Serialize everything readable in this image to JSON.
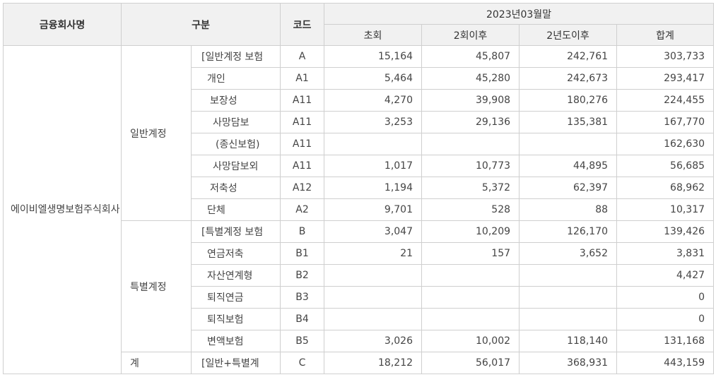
{
  "header": {
    "company_col": "금융회사명",
    "category_col": "구분",
    "code_col": "코드",
    "period": "2023년03월말",
    "sub_cols": [
      "초회",
      "2회이후",
      "2년도이후",
      "합계"
    ]
  },
  "company": "에이비엘생명보험주식회사",
  "groups": {
    "general": "일반계정",
    "special": "특별계정",
    "total": "계"
  },
  "rows": [
    {
      "item": "[일반계정 보험",
      "indent": 14,
      "code": "A",
      "v1": "15,164",
      "v2": "45,807",
      "v3": "242,761",
      "v4": "303,733"
    },
    {
      "item": "개인",
      "indent": 22,
      "code": "A1",
      "v1": "5,464",
      "v2": "45,280",
      "v3": "242,673",
      "v4": "293,417"
    },
    {
      "item": "보장성",
      "indent": 26,
      "code": "A11",
      "v1": "4,270",
      "v2": "39,908",
      "v3": "180,276",
      "v4": "224,455"
    },
    {
      "item": "사망담보",
      "indent": 30,
      "code": "A11",
      "v1": "3,253",
      "v2": "29,136",
      "v3": "135,381",
      "v4": "167,770"
    },
    {
      "item": "(종신보험)",
      "indent": 34,
      "code": "A11",
      "v1": "",
      "v2": "",
      "v3": "",
      "v4": "162,630"
    },
    {
      "item": "사망담보외",
      "indent": 30,
      "code": "A11",
      "v1": "1,017",
      "v2": "10,773",
      "v3": "44,895",
      "v4": "56,685"
    },
    {
      "item": "저축성",
      "indent": 26,
      "code": "A12",
      "v1": "1,194",
      "v2": "5,372",
      "v3": "62,397",
      "v4": "68,962"
    },
    {
      "item": "단체",
      "indent": 22,
      "code": "A2",
      "v1": "9,701",
      "v2": "528",
      "v3": "88",
      "v4": "10,317"
    },
    {
      "item": "[특별계정 보험",
      "indent": 14,
      "code": "B",
      "v1": "3,047",
      "v2": "10,209",
      "v3": "126,170",
      "v4": "139,426"
    },
    {
      "item": "연금저축",
      "indent": 22,
      "code": "B1",
      "v1": "21",
      "v2": "157",
      "v3": "3,652",
      "v4": "3,831"
    },
    {
      "item": "자산연계형",
      "indent": 22,
      "code": "B2",
      "v1": "",
      "v2": "",
      "v3": "",
      "v4": "4,427"
    },
    {
      "item": "퇴직연금",
      "indent": 22,
      "code": "B3",
      "v1": "",
      "v2": "",
      "v3": "",
      "v4": "0"
    },
    {
      "item": "퇴직보험",
      "indent": 22,
      "code": "B4",
      "v1": "",
      "v2": "",
      "v3": "",
      "v4": "0"
    },
    {
      "item": "변액보험",
      "indent": 22,
      "code": "B5",
      "v1": "3,026",
      "v2": "10,002",
      "v3": "118,140",
      "v4": "131,168"
    },
    {
      "item": "[일반+특별계",
      "indent": 14,
      "code": "C",
      "v1": "18,212",
      "v2": "56,017",
      "v3": "368,931",
      "v4": "443,159"
    }
  ]
}
